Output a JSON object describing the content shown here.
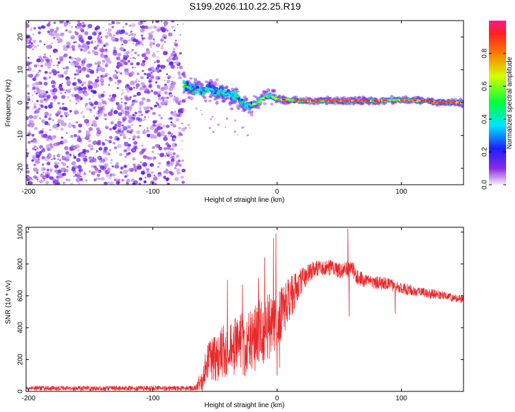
{
  "title": "S199.2026.110.22.25.R19",
  "chart_data": [
    {
      "type": "heatmap",
      "name": "spectrogram",
      "xlabel": "Height of straight line (km)",
      "ylabel": "Frequency (Hz)",
      "xlim": [
        -202,
        150
      ],
      "ylim": [
        -25,
        25
      ],
      "xticks": [
        -200,
        -100,
        0,
        100
      ],
      "xtick_labels": [
        "-200",
        "-100",
        "0",
        "100"
      ],
      "yticks": [
        -20,
        -10,
        0,
        10,
        20
      ],
      "ytick_labels": [
        "-20",
        "-10",
        "0",
        "10",
        "20"
      ],
      "noise_region_x": [
        -202,
        -75
      ],
      "signal_ridge": {
        "x": [
          -75,
          -65,
          -55,
          -45,
          -35,
          -28,
          -22,
          -15,
          -10,
          -5,
          0,
          10,
          20,
          30,
          40,
          50,
          60,
          70,
          80,
          90,
          100,
          110,
          120,
          130,
          140,
          150
        ],
        "y": [
          5,
          4,
          4,
          3,
          2,
          0,
          -1,
          0,
          2,
          2,
          1,
          0.8,
          0.5,
          0.5,
          0.5,
          0.5,
          0.5,
          0.5,
          0.5,
          0.8,
          0.8,
          0.8,
          0.5,
          0,
          0,
          0
        ]
      },
      "colorbar": {
        "label": "Normalized spectral amplitude",
        "range": [
          0,
          1
        ],
        "ticks": [
          0.0,
          0.2,
          0.4,
          0.6,
          0.8
        ],
        "tick_labels": [
          "0.0",
          "0.2",
          "0.4",
          "0.6",
          "0.8"
        ]
      }
    },
    {
      "type": "line",
      "name": "snr",
      "xlabel": "Height of straight line (km)",
      "ylabel": "SNR (10 * v/v)",
      "xlim": [
        -202,
        150
      ],
      "ylim": [
        0,
        1030
      ],
      "xticks": [
        -200,
        -100,
        0,
        100
      ],
      "xtick_labels": [
        "-200",
        "-100",
        "0",
        "100"
      ],
      "yticks": [
        0,
        200,
        400,
        600,
        800,
        1000
      ],
      "ytick_labels": [
        "0",
        "200",
        "400",
        "600",
        "800",
        "1000"
      ],
      "series": [
        {
          "name": "SNR",
          "color": "#e8292b",
          "x": [
            -202,
            -150,
            -100,
            -75,
            -65,
            -60,
            -55,
            -50,
            -45,
            -40,
            -35,
            -30,
            -25,
            -20,
            -15,
            -10,
            -5,
            0,
            5,
            10,
            15,
            20,
            25,
            30,
            35,
            40,
            45,
            50,
            55,
            60,
            65,
            70,
            75,
            80,
            85,
            90,
            95,
            100,
            105,
            110,
            115,
            120,
            125,
            130,
            135,
            140,
            145,
            150
          ],
          "y": [
            20,
            20,
            20,
            20,
            22,
            90,
            200,
            200,
            250,
            250,
            280,
            300,
            280,
            320,
            350,
            380,
            420,
            420,
            500,
            580,
            640,
            700,
            740,
            770,
            780,
            780,
            770,
            760,
            760,
            780,
            710,
            700,
            690,
            680,
            680,
            670,
            660,
            650,
            640,
            630,
            620,
            620,
            610,
            610,
            600,
            590,
            580,
            580
          ],
          "spread_y": [
            15,
            15,
            15,
            15,
            15,
            90,
            120,
            150,
            160,
            170,
            180,
            200,
            200,
            200,
            220,
            220,
            200,
            200,
            180,
            140,
            100,
            80,
            60,
            60,
            50,
            50,
            50,
            50,
            50,
            60,
            50,
            45,
            40,
            40,
            40,
            40,
            35,
            35,
            35,
            30,
            30,
            30,
            30,
            30,
            25,
            25,
            25,
            25
          ],
          "spikes": [
            {
              "x": -40,
              "y": 700
            },
            {
              "x": -28,
              "y": 670
            },
            {
              "x": -15,
              "y": 710
            },
            {
              "x": -10,
              "y": 840
            },
            {
              "x": -3,
              "y": 960
            },
            {
              "x": -1,
              "y": 990
            },
            {
              "x": 0,
              "y": 100
            },
            {
              "x": 2,
              "y": 150
            },
            {
              "x": 57,
              "y": 1020
            },
            {
              "x": 58,
              "y": 470
            },
            {
              "x": 60,
              "y": 810
            },
            {
              "x": 95,
              "y": 490
            }
          ]
        }
      ]
    }
  ]
}
